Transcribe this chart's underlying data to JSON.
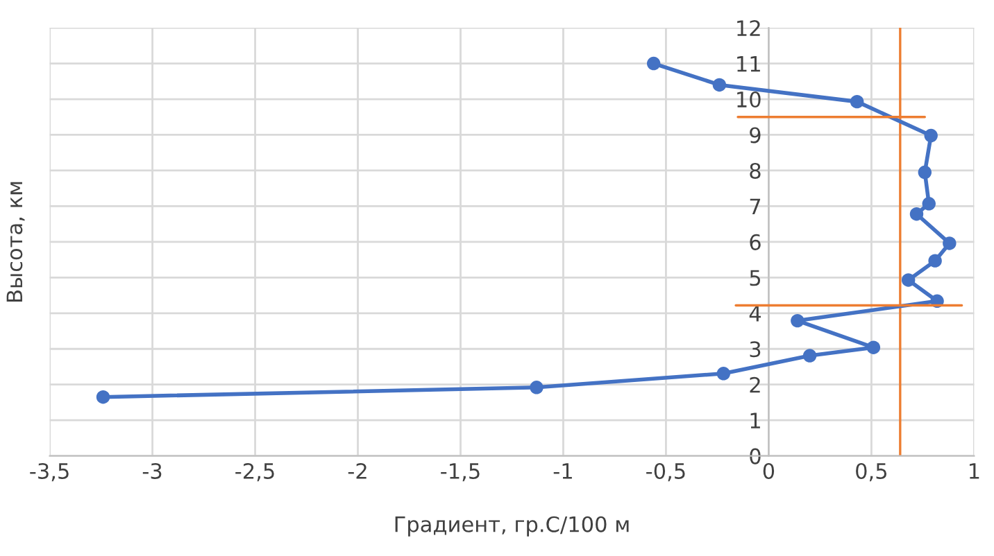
{
  "chart_data": {
    "type": "line",
    "xlabel": "Градиент, гр.С/100 м",
    "ylabel": "Высота, км",
    "xlim": [
      -3.5,
      1
    ],
    "ylim": [
      0,
      12
    ],
    "xticks": [
      {
        "value": -3.5,
        "label": "-3,5"
      },
      -3,
      {
        "value": -2.5,
        "label": "-2,5"
      },
      -2,
      {
        "value": -1.5,
        "label": "-1,5"
      },
      -1,
      {
        "value": -0.5,
        "label": "-0,5"
      },
      0,
      {
        "value": 0.5,
        "label": "0,5"
      },
      1
    ],
    "yticks": [
      0,
      1,
      2,
      3,
      4,
      5,
      6,
      7,
      8,
      9,
      10,
      11,
      12
    ],
    "grid": true,
    "marker": "circle",
    "line_style": "solid",
    "series": [
      {
        "color": "#4472c4",
        "x": [
          -0.56,
          -0.24,
          0.43,
          0.79,
          0.76,
          0.78,
          0.72,
          0.88,
          0.81,
          0.68,
          0.82,
          0.14,
          0.51,
          0.2,
          -0.22,
          -1.13,
          -3.24
        ],
        "values": [
          11.0,
          10.4,
          9.93,
          8.98,
          7.95,
          7.07,
          6.78,
          5.96,
          5.47,
          4.93,
          4.34,
          3.79,
          3.04,
          2.81,
          2.31,
          1.92,
          1.65
        ]
      },
      {
        "color": "#ed7d31",
        "marker": "none",
        "x": [
          -0.15,
          0.76
        ],
        "values": [
          9.5,
          9.5
        ]
      },
      {
        "color": "#ed7d31",
        "marker": "none",
        "x": [
          -0.16,
          0.94
        ],
        "values": [
          4.22,
          4.22
        ]
      }
    ],
    "ref_lines": [
      {
        "axis": "x",
        "value": 0.64,
        "color": "#ed7d31"
      }
    ]
  }
}
